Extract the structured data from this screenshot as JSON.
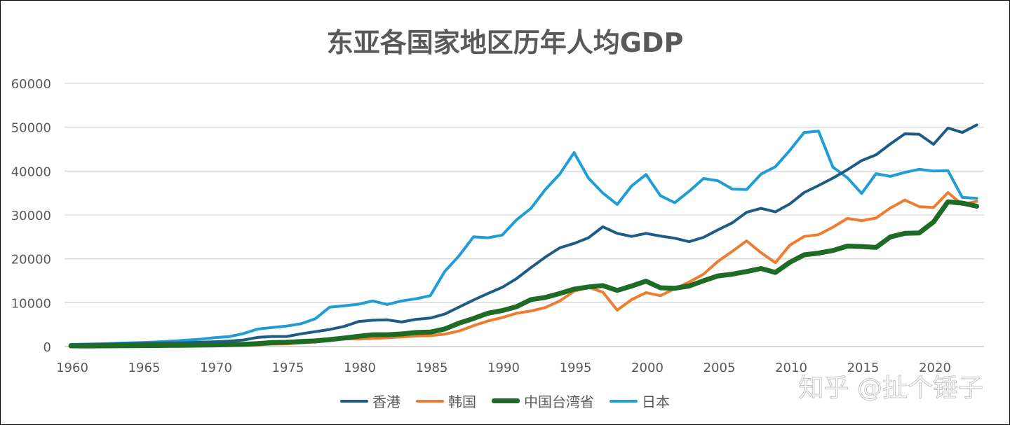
{
  "chart_data": {
    "type": "line",
    "title": "东亚各国家地区历年人均GDP",
    "xlabel": "",
    "ylabel": "",
    "ylim": [
      0,
      60000
    ],
    "xlim": [
      1960,
      2023
    ],
    "grid": true,
    "legend_position": "bottom",
    "y_ticks": [
      "0",
      "10000",
      "20000",
      "30000",
      "40000",
      "50000",
      "60000"
    ],
    "x_ticks": [
      "1960",
      "1965",
      "1970",
      "1975",
      "1980",
      "1985",
      "1990",
      "1995",
      "2000",
      "2005",
      "2010",
      "2015",
      "2020"
    ],
    "x": [
      1960,
      1961,
      1962,
      1963,
      1964,
      1965,
      1966,
      1967,
      1968,
      1969,
      1970,
      1971,
      1972,
      1973,
      1974,
      1975,
      1976,
      1977,
      1978,
      1979,
      1980,
      1981,
      1982,
      1983,
      1984,
      1985,
      1986,
      1987,
      1988,
      1989,
      1990,
      1991,
      1992,
      1993,
      1994,
      1995,
      1996,
      1997,
      1998,
      1999,
      2000,
      2001,
      2002,
      2003,
      2004,
      2005,
      2006,
      2007,
      2008,
      2009,
      2010,
      2011,
      2012,
      2013,
      2014,
      2015,
      2016,
      2017,
      2018,
      2019,
      2020,
      2021,
      2022,
      2023
    ],
    "series": [
      {
        "name": "香港",
        "color": "#1F5C85",
        "values": [
          430,
          470,
          530,
          600,
          690,
          770,
          800,
          850,
          880,
          1000,
          1100,
          1250,
          1500,
          2100,
          2300,
          2300,
          2900,
          3400,
          3900,
          4600,
          5700,
          6000,
          6100,
          5600,
          6200,
          6500,
          7400,
          9000,
          10600,
          12100,
          13500,
          15500,
          18000,
          20400,
          22500,
          23500,
          24800,
          27300,
          25800,
          25100,
          25800,
          25200,
          24700,
          23900,
          24900,
          26600,
          28200,
          30600,
          31500,
          30700,
          32500,
          35100,
          36700,
          38400,
          40300,
          42400,
          43700,
          46200,
          48500,
          48400,
          46100,
          49800,
          48800,
          50500
        ]
      },
      {
        "name": "韩国",
        "color": "#ED7D31",
        "values": [
          158,
          94,
          106,
          146,
          124,
          108,
          133,
          161,
          198,
          243,
          279,
          301,
          324,
          406,
          563,
          617,
          834,
          1055,
          1405,
          1783,
          1715,
          1883,
          1993,
          2199,
          2413,
          2482,
          2835,
          3555,
          4749,
          5817,
          6610,
          7600,
          8100,
          8900,
          10400,
          12600,
          13500,
          12400,
          8300,
          10700,
          12300,
          11600,
          13200,
          14700,
          16500,
          19400,
          21700,
          24100,
          21400,
          19100,
          23100,
          25100,
          25500,
          27200,
          29200,
          28700,
          29300,
          31600,
          33400,
          31900,
          31700,
          35100,
          32400,
          33100
        ]
      },
      {
        "name": "中国台湾省",
        "color": "#1E6B25",
        "values": [
          160,
          150,
          160,
          180,
          200,
          220,
          240,
          270,
          300,
          340,
          390,
          450,
          520,
          690,
          920,
          970,
          1160,
          1300,
          1600,
          1950,
          2350,
          2700,
          2700,
          2880,
          3200,
          3300,
          4000,
          5350,
          6400,
          7600,
          8200,
          9100,
          10700,
          11200,
          12100,
          13100,
          13600,
          13900,
          12800,
          13800,
          14900,
          13400,
          13300,
          13800,
          15000,
          16100,
          16500,
          17100,
          17800,
          16900,
          19200,
          20900,
          21300,
          21900,
          22900,
          22800,
          22600,
          25000,
          25800,
          25900,
          28400,
          33000,
          32700,
          32000
        ]
      },
      {
        "name": "日本",
        "color": "#1F9DD4",
        "values": [
          479,
          560,
          630,
          720,
          840,
          920,
          1060,
          1230,
          1450,
          1670,
          2040,
          2270,
          2970,
          3990,
          4350,
          4670,
          5200,
          6340,
          8990,
          9300,
          9660,
          10400,
          9600,
          10400,
          10900,
          11600,
          17100,
          20700,
          25000,
          24800,
          25400,
          28900,
          31500,
          35800,
          39300,
          44200,
          38400,
          35000,
          32400,
          36600,
          39200,
          34400,
          32800,
          35400,
          38300,
          37800,
          35900,
          35800,
          39300,
          41000,
          44700,
          48800,
          49100,
          40900,
          38500,
          34900,
          39400,
          38800,
          39700,
          40400,
          40000,
          40100,
          34000,
          33800
        ]
      }
    ]
  },
  "watermark": "知乎 @扯个锤子"
}
